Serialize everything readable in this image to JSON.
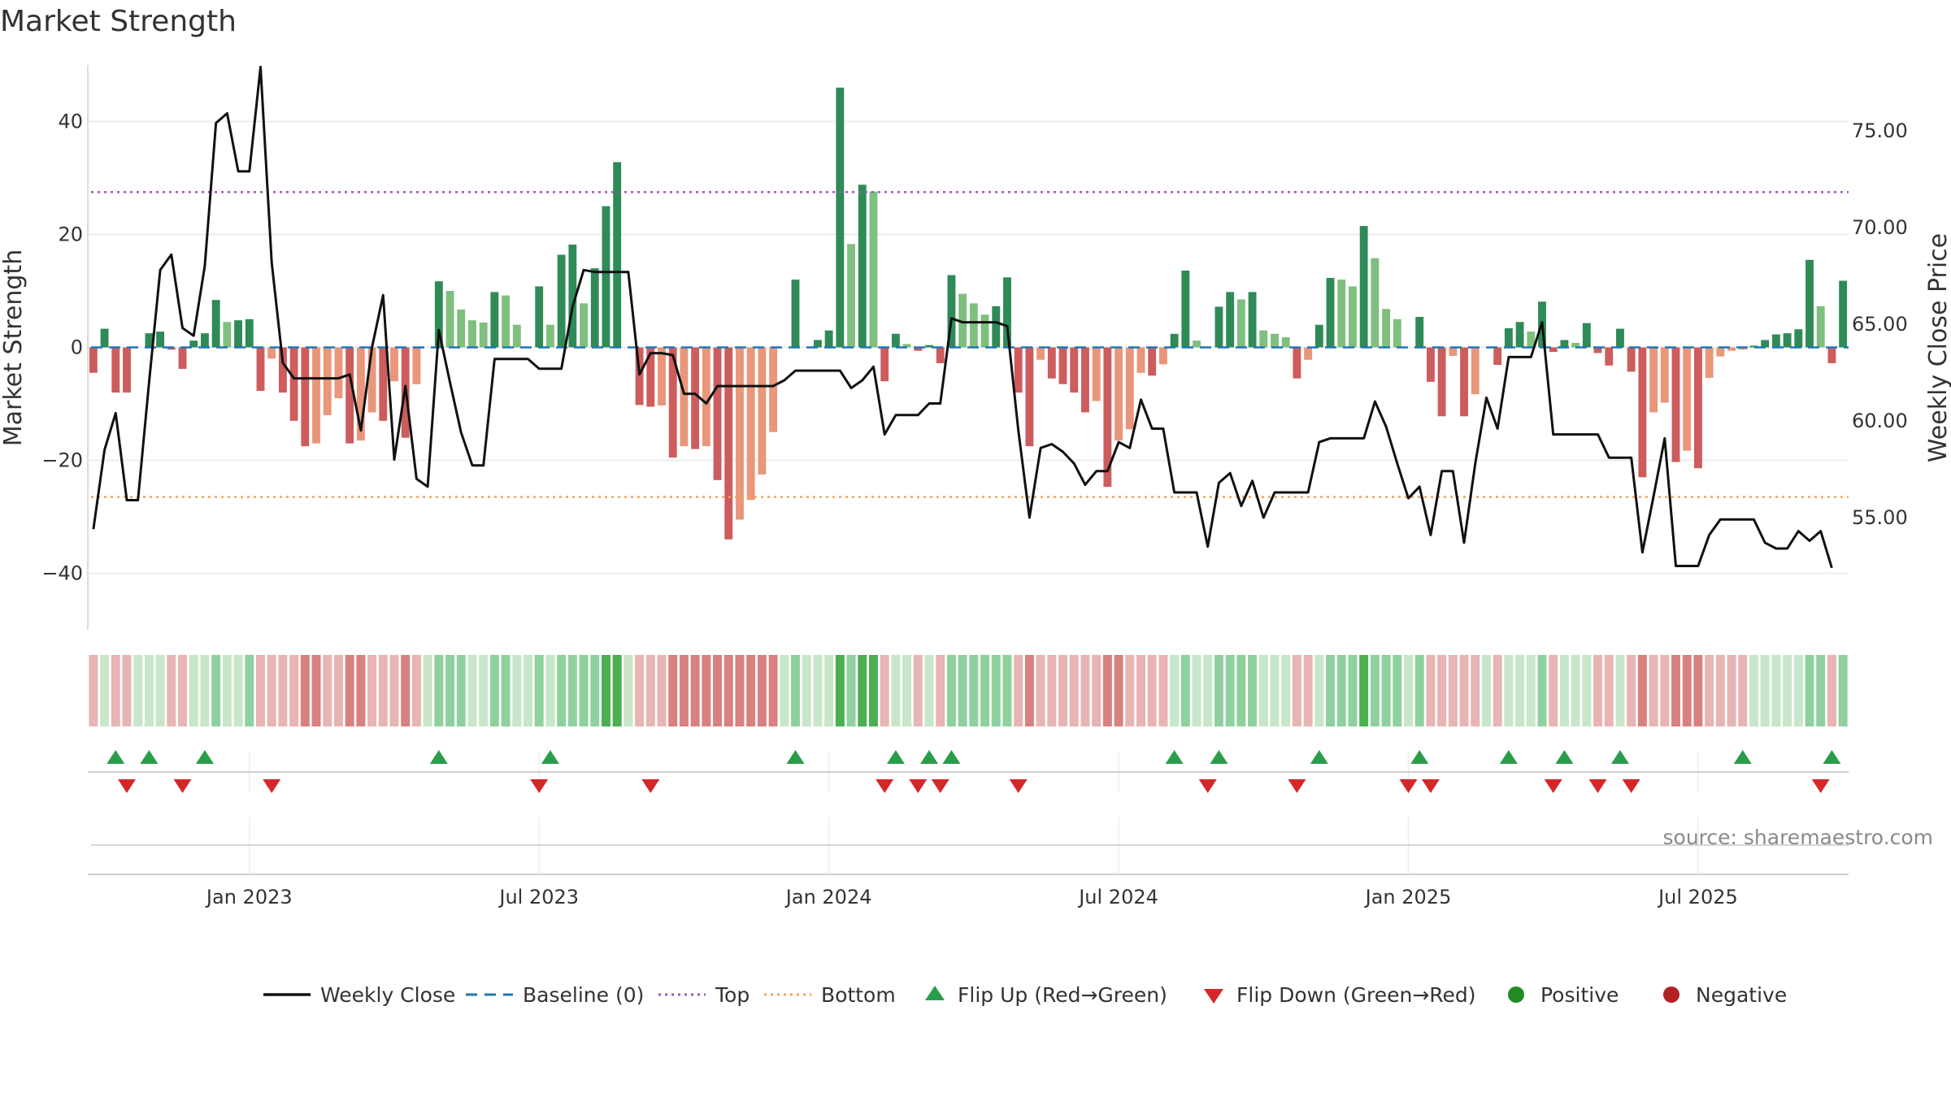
{
  "chart_data": {
    "type": "bar+line",
    "title": "Market Strength",
    "ylabel_left": "Market Strength",
    "ylabel_right": "Weekly Close Price",
    "source": "source: sharemaestro.com",
    "ylim_left": [
      -50,
      50
    ],
    "ylim_right": [
      49.2,
      78.4
    ],
    "left_ticks": [
      40,
      20,
      0,
      -20,
      -40
    ],
    "left_tick_labels": [
      "40",
      "20",
      "0",
      "−20",
      "−40"
    ],
    "right_ticks": [
      75,
      70,
      65,
      60,
      55
    ],
    "right_tick_labels": [
      "75.00",
      "70.00",
      "65.00",
      "60.00",
      "55.00"
    ],
    "x_ticks": [
      {
        "week": 14.5,
        "label": "Jan 2023"
      },
      {
        "week": 40.5,
        "label": "Jul 2023"
      },
      {
        "week": 66.5,
        "label": "Jan 2024"
      },
      {
        "week": 92.5,
        "label": "Jul 2024"
      },
      {
        "week": 118.5,
        "label": "Jan 2025"
      },
      {
        "week": 144.5,
        "label": "Jul 2025"
      }
    ],
    "top_level": 27.5,
    "bottom_level": -26.5,
    "baseline": 0,
    "strength": [
      -4.5,
      3.3,
      -8,
      -8,
      0,
      2.5,
      2.8,
      -0.4,
      -3.8,
      1.2,
      2.5,
      8.4,
      4.5,
      4.8,
      5,
      -7.7,
      -2,
      -8,
      -13,
      -17.5,
      -17,
      -12,
      -9,
      -17,
      -16.5,
      -11.5,
      -13,
      -6,
      -16,
      -6.5,
      0,
      11.7,
      10,
      6.7,
      4.8,
      4.4,
      9.8,
      9.2,
      4,
      0,
      10.8,
      4,
      16.4,
      18.2,
      7.8,
      14,
      25,
      32.8,
      0,
      -10.2,
      -10.5,
      -10.3,
      -19.5,
      -17.5,
      -18,
      -17.5,
      -23.5,
      -34,
      -30.5,
      -27,
      -22.5,
      -15,
      0,
      12,
      0,
      1.3,
      3,
      46,
      18.3,
      28.8,
      27.6,
      -6,
      2.4,
      0.6,
      -0.6,
      0.4,
      -2.8,
      12.8,
      9.5,
      7.8,
      5.8,
      7.3,
      12.4,
      -8,
      -17.5,
      -2.2,
      -5.5,
      -6.5,
      -8,
      -11.5,
      -9.5,
      -24.7,
      -16.5,
      -14.5,
      -4.5,
      -5,
      -3,
      2.4,
      13.6,
      1.2,
      0,
      7.2,
      9.8,
      8.5,
      9.8,
      3,
      2.4,
      1.8,
      -5.5,
      -2.2,
      4,
      12.3,
      12,
      10.8,
      21.5,
      15.8,
      6.8,
      5,
      0,
      5.4,
      -6.1,
      -12.2,
      -1.5,
      -12.2,
      -8.3,
      0,
      -3.1,
      3.4,
      4.5,
      2.8,
      8.1,
      -0.8,
      1.3,
      0.8,
      4.3,
      -1,
      -3.2,
      3.3,
      -4.3,
      -23,
      -11.5,
      -9.8,
      -20.3,
      -18.3,
      -21.4,
      -5.4,
      -1.6,
      -0.6,
      -0.4,
      0.3,
      1.3,
      2.3,
      2.5,
      3.2,
      15.5,
      7.3,
      -2.8,
      11.8
    ],
    "bar_colors": {
      "strong_positive": "#2e8b57",
      "weak_positive": "#7fbf7f",
      "strong_negative": "#cd5c5c",
      "weak_negative": "#e9967a"
    },
    "weekly_close": [
      54.4,
      58.5,
      60.4,
      55.9,
      55.9,
      62,
      67.8,
      68.6,
      64.8,
      64.4,
      68,
      75.4,
      75.9,
      72.9,
      72.9,
      78.3,
      68.2,
      63,
      62.2,
      62.2,
      62.2,
      62.2,
      62.2,
      62.4,
      59.5,
      63.8,
      66.5,
      58,
      61.8,
      57,
      56.6,
      64.7,
      62,
      59.4,
      57.7,
      57.7,
      63.2,
      63.2,
      63.2,
      63.2,
      62.7,
      62.7,
      62.7,
      65.9,
      67.8,
      67.7,
      67.7,
      67.7,
      67.7,
      62.4,
      63.5,
      63.5,
      63.4,
      61.4,
      61.4,
      60.9,
      61.8,
      61.8,
      61.8,
      61.8,
      61.8,
      61.8,
      62.1,
      62.6,
      62.6,
      62.6,
      62.6,
      62.6,
      61.7,
      62.1,
      62.8,
      59.3,
      60.3,
      60.3,
      60.3,
      60.9,
      60.9,
      65.3,
      65.1,
      65.1,
      65.1,
      65.1,
      64.9,
      59.5,
      55,
      58.6,
      58.8,
      58.4,
      57.8,
      56.7,
      57.4,
      57.4,
      58.9,
      58.6,
      61.1,
      59.6,
      59.6,
      56.3,
      56.3,
      56.3,
      53.5,
      56.8,
      57.3,
      55.6,
      56.9,
      55,
      56.3,
      56.3,
      56.3,
      56.3,
      58.9,
      59.1,
      59.1,
      59.1,
      59.1,
      61,
      59.7,
      57.8,
      56,
      56.6,
      54.1,
      57.4,
      57.4,
      53.7,
      57.8,
      61.2,
      59.6,
      63.3,
      63.3,
      63.3,
      65.1,
      59.3,
      59.3,
      59.3,
      59.3,
      59.3,
      58.1,
      58.1,
      58.1,
      53.2,
      56.1,
      59.1,
      52.5,
      52.5,
      52.5,
      54.1,
      54.9,
      54.9,
      54.9,
      54.9,
      53.7,
      53.4,
      53.4,
      54.3,
      53.8,
      54.3,
      52.4
    ],
    "heat_colors": {
      "strong_positive": "#4caf50",
      "positive": "#8fd19e",
      "neutral": "#c8e6c9",
      "negative": "#e8b4b4",
      "strong_negative": "#d98080"
    },
    "flip_up_weeks": [
      2,
      5,
      10,
      31,
      41,
      63,
      72,
      75,
      77,
      97,
      101,
      110,
      119,
      127,
      132,
      137,
      148,
      156
    ],
    "flip_down_weeks": [
      3,
      8,
      16,
      40,
      50,
      71,
      74,
      76,
      83,
      100,
      108,
      118,
      120,
      131,
      135,
      138,
      155
    ],
    "legend": [
      {
        "label": "Weekly Close",
        "kind": "line",
        "color": "#111111"
      },
      {
        "label": "Baseline (0)",
        "kind": "dash",
        "color": "#1f77b4"
      },
      {
        "label": "Top",
        "kind": "dot",
        "color": "#9b59b6"
      },
      {
        "label": "Bottom",
        "kind": "dot",
        "color": "#f0a35e"
      },
      {
        "label": "Flip Up (Red→Green)",
        "kind": "tri-up",
        "color": "#2a9d4a"
      },
      {
        "label": "Flip Down (Green→Red)",
        "kind": "tri-down",
        "color": "#d62728"
      },
      {
        "label": "Positive",
        "kind": "circle",
        "color": "#228b22"
      },
      {
        "label": "Negative",
        "kind": "circle",
        "color": "#b22222"
      }
    ]
  }
}
